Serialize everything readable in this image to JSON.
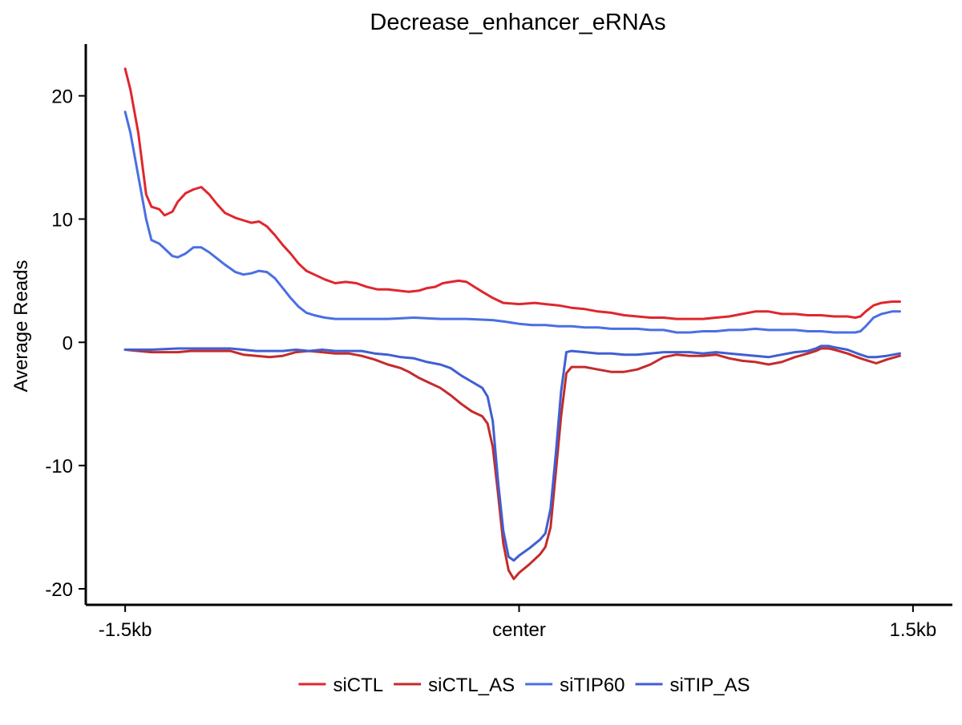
{
  "chart_data": {
    "type": "line",
    "title": "Decrease_enhancer_eRNAs",
    "xlabel": "",
    "ylabel": "Average Reads",
    "x_ticks": [
      {
        "pos": -1.5,
        "label": "-1.5kb"
      },
      {
        "pos": 0,
        "label": "center"
      },
      {
        "pos": 1.5,
        "label": "1.5kb"
      }
    ],
    "y_ticks": [
      20,
      10,
      0,
      -10,
      -20
    ],
    "xlim": [
      -1.65,
      1.65
    ],
    "ylim": [
      -21.3,
      24.2
    ],
    "grid": false,
    "legend_position": "bottom",
    "series": [
      {
        "name": "siCTL",
        "color": "#e0262d",
        "points": [
          [
            -1.5,
            22.2
          ],
          [
            -1.48,
            20.5
          ],
          [
            -1.45,
            17
          ],
          [
            -1.42,
            12
          ],
          [
            -1.4,
            11
          ],
          [
            -1.37,
            10.8
          ],
          [
            -1.35,
            10.3
          ],
          [
            -1.32,
            10.6
          ],
          [
            -1.3,
            11.4
          ],
          [
            -1.27,
            12.1
          ],
          [
            -1.24,
            12.4
          ],
          [
            -1.21,
            12.6
          ],
          [
            -1.18,
            12
          ],
          [
            -1.15,
            11.2
          ],
          [
            -1.12,
            10.5
          ],
          [
            -1.08,
            10.1
          ],
          [
            -1.05,
            9.9
          ],
          [
            -1.02,
            9.7
          ],
          [
            -0.99,
            9.8
          ],
          [
            -0.96,
            9.4
          ],
          [
            -0.93,
            8.7
          ],
          [
            -0.9,
            7.9
          ],
          [
            -0.87,
            7.2
          ],
          [
            -0.84,
            6.4
          ],
          [
            -0.81,
            5.8
          ],
          [
            -0.78,
            5.5
          ],
          [
            -0.74,
            5.1
          ],
          [
            -0.7,
            4.8
          ],
          [
            -0.66,
            4.9
          ],
          [
            -0.62,
            4.8
          ],
          [
            -0.58,
            4.5
          ],
          [
            -0.54,
            4.3
          ],
          [
            -0.5,
            4.3
          ],
          [
            -0.46,
            4.2
          ],
          [
            -0.42,
            4.1
          ],
          [
            -0.38,
            4.2
          ],
          [
            -0.35,
            4.4
          ],
          [
            -0.32,
            4.5
          ],
          [
            -0.29,
            4.8
          ],
          [
            -0.26,
            4.9
          ],
          [
            -0.23,
            5
          ],
          [
            -0.2,
            4.9
          ],
          [
            -0.17,
            4.5
          ],
          [
            -0.14,
            4.1
          ],
          [
            -0.1,
            3.6
          ],
          [
            -0.06,
            3.2
          ],
          [
            0,
            3.1
          ],
          [
            0.06,
            3.2
          ],
          [
            0.1,
            3.1
          ],
          [
            0.15,
            3
          ],
          [
            0.2,
            2.8
          ],
          [
            0.25,
            2.7
          ],
          [
            0.3,
            2.5
          ],
          [
            0.35,
            2.4
          ],
          [
            0.4,
            2.2
          ],
          [
            0.45,
            2.1
          ],
          [
            0.5,
            2
          ],
          [
            0.55,
            2
          ],
          [
            0.6,
            1.9
          ],
          [
            0.65,
            1.9
          ],
          [
            0.7,
            1.9
          ],
          [
            0.75,
            2
          ],
          [
            0.8,
            2.1
          ],
          [
            0.85,
            2.3
          ],
          [
            0.9,
            2.5
          ],
          [
            0.95,
            2.5
          ],
          [
            1,
            2.3
          ],
          [
            1.05,
            2.3
          ],
          [
            1.1,
            2.2
          ],
          [
            1.15,
            2.2
          ],
          [
            1.2,
            2.1
          ],
          [
            1.25,
            2.1
          ],
          [
            1.28,
            2
          ],
          [
            1.3,
            2.1
          ],
          [
            1.32,
            2.5
          ],
          [
            1.35,
            3
          ],
          [
            1.38,
            3.2
          ],
          [
            1.42,
            3.3
          ],
          [
            1.45,
            3.3
          ]
        ]
      },
      {
        "name": "siCTL_AS",
        "color": "#c52b2b",
        "points": [
          [
            -1.5,
            -0.6
          ],
          [
            -1.45,
            -0.7
          ],
          [
            -1.4,
            -0.8
          ],
          [
            -1.35,
            -0.8
          ],
          [
            -1.3,
            -0.8
          ],
          [
            -1.25,
            -0.7
          ],
          [
            -1.2,
            -0.7
          ],
          [
            -1.15,
            -0.7
          ],
          [
            -1.1,
            -0.7
          ],
          [
            -1.05,
            -1
          ],
          [
            -1,
            -1.1
          ],
          [
            -0.95,
            -1.2
          ],
          [
            -0.9,
            -1.1
          ],
          [
            -0.85,
            -0.8
          ],
          [
            -0.8,
            -0.7
          ],
          [
            -0.75,
            -0.8
          ],
          [
            -0.7,
            -0.9
          ],
          [
            -0.65,
            -0.9
          ],
          [
            -0.6,
            -1.1
          ],
          [
            -0.55,
            -1.4
          ],
          [
            -0.5,
            -1.8
          ],
          [
            -0.45,
            -2.1
          ],
          [
            -0.42,
            -2.4
          ],
          [
            -0.38,
            -2.9
          ],
          [
            -0.34,
            -3.3
          ],
          [
            -0.3,
            -3.7
          ],
          [
            -0.26,
            -4.3
          ],
          [
            -0.22,
            -5
          ],
          [
            -0.18,
            -5.6
          ],
          [
            -0.14,
            -6
          ],
          [
            -0.12,
            -6.6
          ],
          [
            -0.1,
            -8.5
          ],
          [
            -0.08,
            -12.3
          ],
          [
            -0.06,
            -16.3
          ],
          [
            -0.04,
            -18.5
          ],
          [
            -0.02,
            -19.2
          ],
          [
            0,
            -18.7
          ],
          [
            0.04,
            -18
          ],
          [
            0.08,
            -17.2
          ],
          [
            0.1,
            -16.6
          ],
          [
            0.12,
            -15
          ],
          [
            0.14,
            -10.5
          ],
          [
            0.16,
            -6
          ],
          [
            0.18,
            -2.5
          ],
          [
            0.2,
            -2
          ],
          [
            0.25,
            -2
          ],
          [
            0.3,
            -2.2
          ],
          [
            0.35,
            -2.4
          ],
          [
            0.4,
            -2.4
          ],
          [
            0.45,
            -2.2
          ],
          [
            0.5,
            -1.8
          ],
          [
            0.55,
            -1.2
          ],
          [
            0.6,
            -1
          ],
          [
            0.65,
            -1.1
          ],
          [
            0.7,
            -1.1
          ],
          [
            0.75,
            -1
          ],
          [
            0.8,
            -1.3
          ],
          [
            0.85,
            -1.5
          ],
          [
            0.9,
            -1.6
          ],
          [
            0.95,
            -1.8
          ],
          [
            1,
            -1.6
          ],
          [
            1.05,
            -1.2
          ],
          [
            1.1,
            -0.9
          ],
          [
            1.13,
            -0.7
          ],
          [
            1.15,
            -0.5
          ],
          [
            1.18,
            -0.5
          ],
          [
            1.2,
            -0.6
          ],
          [
            1.25,
            -0.9
          ],
          [
            1.3,
            -1.3
          ],
          [
            1.33,
            -1.5
          ],
          [
            1.36,
            -1.7
          ],
          [
            1.4,
            -1.4
          ],
          [
            1.45,
            -1.1
          ]
        ]
      },
      {
        "name": "siTIP60",
        "color": "#4a6fe3",
        "points": [
          [
            -1.5,
            18.7
          ],
          [
            -1.48,
            17
          ],
          [
            -1.45,
            13.5
          ],
          [
            -1.42,
            10
          ],
          [
            -1.4,
            8.3
          ],
          [
            -1.37,
            8
          ],
          [
            -1.35,
            7.6
          ],
          [
            -1.32,
            7
          ],
          [
            -1.3,
            6.9
          ],
          [
            -1.27,
            7.2
          ],
          [
            -1.24,
            7.7
          ],
          [
            -1.21,
            7.7
          ],
          [
            -1.18,
            7.3
          ],
          [
            -1.15,
            6.8
          ],
          [
            -1.12,
            6.3
          ],
          [
            -1.08,
            5.7
          ],
          [
            -1.05,
            5.5
          ],
          [
            -1.02,
            5.6
          ],
          [
            -0.99,
            5.8
          ],
          [
            -0.96,
            5.7
          ],
          [
            -0.93,
            5.2
          ],
          [
            -0.9,
            4.4
          ],
          [
            -0.87,
            3.6
          ],
          [
            -0.84,
            2.9
          ],
          [
            -0.81,
            2.4
          ],
          [
            -0.78,
            2.2
          ],
          [
            -0.74,
            2
          ],
          [
            -0.7,
            1.9
          ],
          [
            -0.6,
            1.9
          ],
          [
            -0.5,
            1.9
          ],
          [
            -0.4,
            2
          ],
          [
            -0.3,
            1.9
          ],
          [
            -0.2,
            1.9
          ],
          [
            -0.1,
            1.8
          ],
          [
            -0.06,
            1.7
          ],
          [
            0,
            1.5
          ],
          [
            0.05,
            1.4
          ],
          [
            0.1,
            1.4
          ],
          [
            0.15,
            1.3
          ],
          [
            0.2,
            1.3
          ],
          [
            0.25,
            1.2
          ],
          [
            0.3,
            1.2
          ],
          [
            0.35,
            1.1
          ],
          [
            0.4,
            1.1
          ],
          [
            0.45,
            1.1
          ],
          [
            0.5,
            1
          ],
          [
            0.55,
            1
          ],
          [
            0.6,
            0.8
          ],
          [
            0.65,
            0.8
          ],
          [
            0.7,
            0.9
          ],
          [
            0.75,
            0.9
          ],
          [
            0.8,
            1
          ],
          [
            0.85,
            1
          ],
          [
            0.9,
            1.1
          ],
          [
            0.95,
            1
          ],
          [
            1,
            1
          ],
          [
            1.05,
            1
          ],
          [
            1.1,
            0.9
          ],
          [
            1.15,
            0.9
          ],
          [
            1.2,
            0.8
          ],
          [
            1.25,
            0.8
          ],
          [
            1.28,
            0.8
          ],
          [
            1.3,
            0.9
          ],
          [
            1.32,
            1.3
          ],
          [
            1.35,
            2
          ],
          [
            1.38,
            2.3
          ],
          [
            1.42,
            2.5
          ],
          [
            1.45,
            2.5
          ]
        ]
      },
      {
        "name": "siTIP_AS",
        "color": "#3f5fd1",
        "points": [
          [
            -1.5,
            -0.6
          ],
          [
            -1.4,
            -0.6
          ],
          [
            -1.3,
            -0.5
          ],
          [
            -1.2,
            -0.5
          ],
          [
            -1.1,
            -0.5
          ],
          [
            -1.05,
            -0.6
          ],
          [
            -1,
            -0.7
          ],
          [
            -0.95,
            -0.7
          ],
          [
            -0.9,
            -0.7
          ],
          [
            -0.85,
            -0.6
          ],
          [
            -0.8,
            -0.7
          ],
          [
            -0.75,
            -0.6
          ],
          [
            -0.7,
            -0.7
          ],
          [
            -0.65,
            -0.7
          ],
          [
            -0.6,
            -0.7
          ],
          [
            -0.55,
            -0.9
          ],
          [
            -0.5,
            -1
          ],
          [
            -0.45,
            -1.2
          ],
          [
            -0.4,
            -1.3
          ],
          [
            -0.35,
            -1.6
          ],
          [
            -0.3,
            -1.8
          ],
          [
            -0.26,
            -2.1
          ],
          [
            -0.22,
            -2.7
          ],
          [
            -0.18,
            -3.2
          ],
          [
            -0.14,
            -3.7
          ],
          [
            -0.12,
            -4.4
          ],
          [
            -0.1,
            -6.4
          ],
          [
            -0.08,
            -11.3
          ],
          [
            -0.06,
            -15.3
          ],
          [
            -0.04,
            -17.4
          ],
          [
            -0.02,
            -17.7
          ],
          [
            0,
            -17.3
          ],
          [
            0.04,
            -16.7
          ],
          [
            0.08,
            -16
          ],
          [
            0.1,
            -15.5
          ],
          [
            0.12,
            -13.5
          ],
          [
            0.14,
            -9
          ],
          [
            0.16,
            -4
          ],
          [
            0.18,
            -0.8
          ],
          [
            0.2,
            -0.7
          ],
          [
            0.25,
            -0.8
          ],
          [
            0.3,
            -0.9
          ],
          [
            0.35,
            -0.9
          ],
          [
            0.4,
            -1
          ],
          [
            0.45,
            -1
          ],
          [
            0.5,
            -0.9
          ],
          [
            0.55,
            -0.8
          ],
          [
            0.6,
            -0.8
          ],
          [
            0.65,
            -0.8
          ],
          [
            0.7,
            -0.9
          ],
          [
            0.75,
            -0.8
          ],
          [
            0.8,
            -0.9
          ],
          [
            0.85,
            -1
          ],
          [
            0.9,
            -1.1
          ],
          [
            0.95,
            -1.2
          ],
          [
            1,
            -1
          ],
          [
            1.05,
            -0.8
          ],
          [
            1.1,
            -0.7
          ],
          [
            1.13,
            -0.5
          ],
          [
            1.15,
            -0.3
          ],
          [
            1.18,
            -0.3
          ],
          [
            1.2,
            -0.4
          ],
          [
            1.25,
            -0.6
          ],
          [
            1.3,
            -1
          ],
          [
            1.33,
            -1.2
          ],
          [
            1.36,
            -1.2
          ],
          [
            1.4,
            -1.1
          ],
          [
            1.45,
            -0.9
          ]
        ]
      }
    ]
  }
}
